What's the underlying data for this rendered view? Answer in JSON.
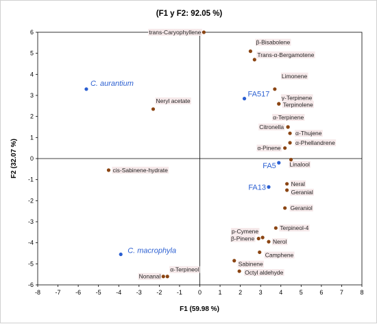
{
  "chart_data": {
    "type": "scatter",
    "title": "(F1 y F2: 92.05 %)",
    "xlabel": "F1 (59.98 %)",
    "ylabel": "F2 (32.07 %)",
    "xlim": [
      -8,
      8
    ],
    "ylim": [
      -6,
      6
    ],
    "xticks": [
      "-8",
      "-7",
      "-6",
      "-5",
      "-4",
      "-3",
      "-2",
      "-1",
      "0",
      "1",
      "2",
      "3",
      "4",
      "5",
      "6",
      "7",
      "8"
    ],
    "yticks": [
      "6",
      "5",
      "4",
      "3",
      "2",
      "1",
      "0",
      "-1",
      "-2",
      "-3",
      "-4",
      "-5",
      "-6"
    ],
    "colors": {
      "compound": "#8b4513",
      "sample": "#2b5fd1",
      "axis": "#000000",
      "label_bg": "#f6e9ea"
    },
    "series": [
      {
        "name": "",
        "points": [
          {
            "label": "trans-Caryophyllene",
            "x": 0.2,
            "y": 6.0
          },
          {
            "label": "β-Bisabolene",
            "x": 2.5,
            "y": 5.1
          },
          {
            "label": "Trans-α-Bergamotene",
            "x": 2.7,
            "y": 4.7
          },
          {
            "label": "Limonene",
            "x": 3.7,
            "y": 3.3
          },
          {
            "label": "γ-Terpinene",
            "x": 3.9,
            "y": 2.6
          },
          {
            "label": "Terpinolene",
            "x": 3.9,
            "y": 2.6
          },
          {
            "label": "Neryl acetate",
            "x": -2.3,
            "y": 2.35
          },
          {
            "label": "α-Terpinene",
            "x": 4.35,
            "y": 1.5
          },
          {
            "label": "Citronella",
            "x": 4.35,
            "y": 1.5
          },
          {
            "label": "α-Thujene",
            "x": 4.45,
            "y": 1.2
          },
          {
            "label": "α-Phellandrene",
            "x": 4.45,
            "y": 0.75
          },
          {
            "label": "α-Pinene",
            "x": 4.2,
            "y": 0.5
          },
          {
            "label": "Linalool",
            "x": 4.5,
            "y": -0.05
          },
          {
            "label": "cis-Sabinene-hydrate",
            "x": -4.5,
            "y": -0.55
          },
          {
            "label": "Neral",
            "x": 4.3,
            "y": -1.2
          },
          {
            "label": "Geranial",
            "x": 4.3,
            "y": -1.5
          },
          {
            "label": "Geraniol",
            "x": 4.2,
            "y": -2.35
          },
          {
            "label": "Terpineol-4",
            "x": 3.75,
            "y": -3.3
          },
          {
            "label": "p-Cymene",
            "x": 3.1,
            "y": -3.75
          },
          {
            "label": "β-Pinene",
            "x": 2.9,
            "y": -3.8
          },
          {
            "label": "Nerol",
            "x": 3.4,
            "y": -3.95
          },
          {
            "label": "Camphene",
            "x": 2.95,
            "y": -4.45
          },
          {
            "label": "Sabinene",
            "x": 1.7,
            "y": -4.85
          },
          {
            "label": "Octyl aldehyde",
            "x": 1.95,
            "y": -5.35
          },
          {
            "label": "α-Terpineol",
            "x": -1.6,
            "y": -5.6
          },
          {
            "label": "Nonanal",
            "x": -1.8,
            "y": -5.6
          }
        ]
      },
      {
        "name": "",
        "points": [
          {
            "label": "C. aurantium",
            "x": -5.6,
            "y": 3.3
          },
          {
            "label": "FA517",
            "x": 2.2,
            "y": 2.85
          },
          {
            "label": "FA5",
            "x": 3.9,
            "y": -0.2
          },
          {
            "label": "FA13",
            "x": 3.4,
            "y": -1.35
          },
          {
            "label": "C. macrophyla",
            "x": -3.9,
            "y": -4.55
          }
        ]
      }
    ]
  }
}
